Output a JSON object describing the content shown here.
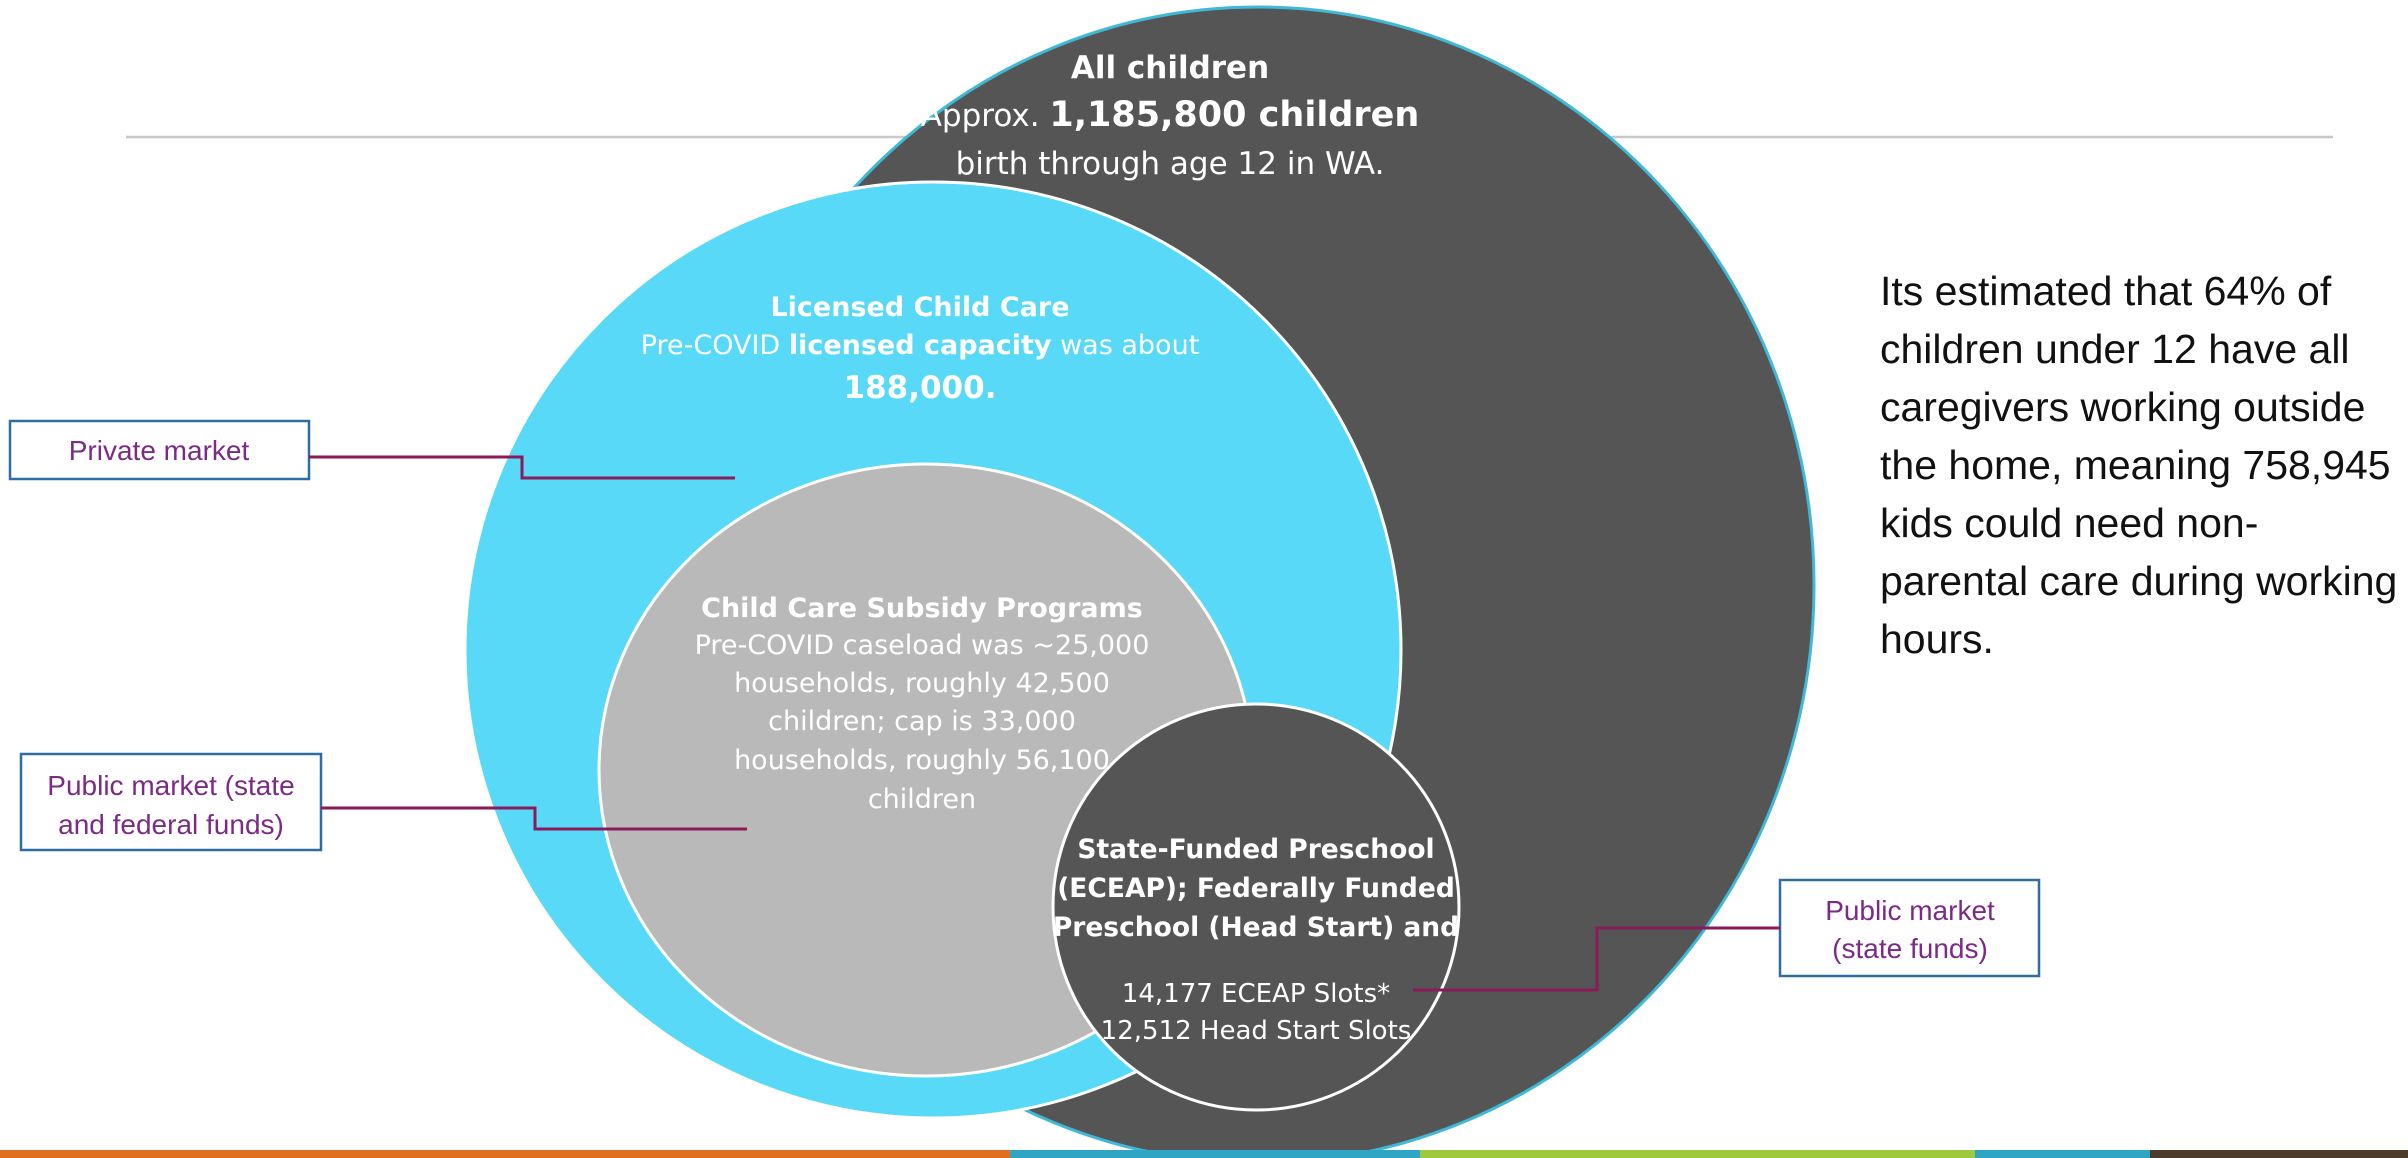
{
  "diagram": {
    "all_children": {
      "title": "All children",
      "line2_prefix": "Approx. ",
      "line2_value": "1,185,800 children",
      "line3": "birth through age 12 in WA."
    },
    "licensed": {
      "title": "Licensed Child Care",
      "line2_prefix": "Pre-COVID ",
      "line2_bold": "licensed capacity",
      "line2_suffix": " was about",
      "value": "188,000."
    },
    "subsidy": {
      "title": "Child Care Subsidy Programs",
      "lines": [
        "Pre-COVID caseload was ~25,000",
        "households, roughly 42,500",
        "children; cap is 33,000",
        "households, roughly 56,100",
        "children"
      ]
    },
    "preschool": {
      "title_lines": [
        "State-Funded Preschool",
        "(ECEAP); Federally Funded",
        "Preschool (Head Start) and"
      ],
      "slot_lines": [
        "14,177 ECEAP Slots*",
        "12,512 Head Start Slots"
      ]
    }
  },
  "callouts": {
    "private_market": "Private market",
    "public_state_federal": [
      "Public market (state",
      "and federal funds)"
    ],
    "public_state": [
      "Public market",
      "(state funds)"
    ]
  },
  "note": "Its estimated that 64% of children under 12 have all caregivers working outside the home, meaning 758,945 kids could need non-parental care during working hours.",
  "colors": {
    "outer_circle": "#555555",
    "outer_stroke": "#3fb9d6",
    "licensed_circle": "#57d9f7",
    "subsidy_circle": "#b9b9b9",
    "preschool_circle": "#555555",
    "callout_text": "#7b2a86",
    "callout_border": "#2e6ca4",
    "connector": "#8a1a5a",
    "footer_bar": [
      "#e0701f",
      "#e0701f",
      "#2ea5c4",
      "#9fc93c",
      "#2ea5c4",
      "#4a3b2a"
    ]
  }
}
